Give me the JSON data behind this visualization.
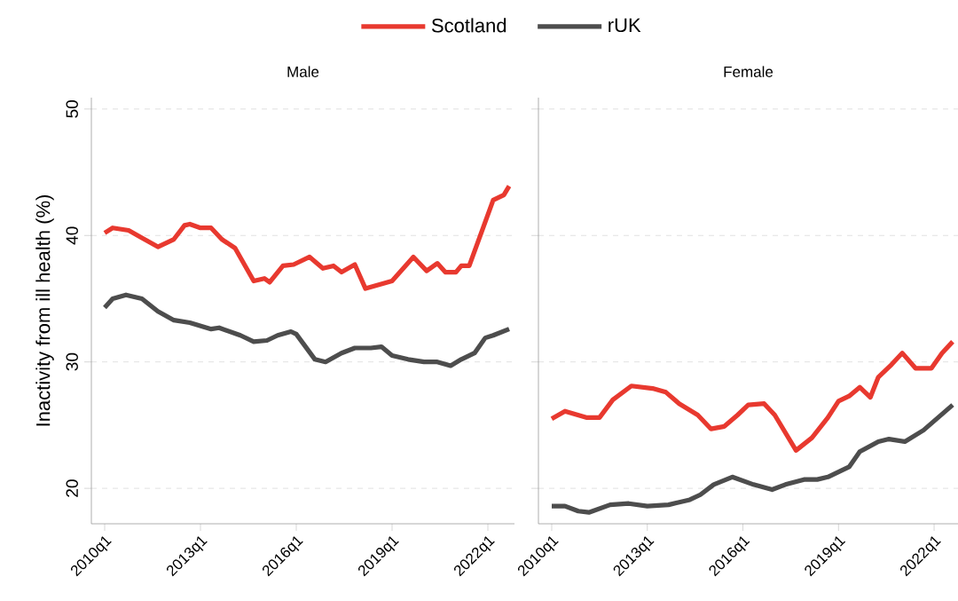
{
  "chart_data": [
    {
      "type": "line",
      "title": "Male",
      "ylabel": "Inactivity from ill health (%)",
      "legend": "top",
      "grid": "y",
      "xlim": [
        "2009-08",
        "2022-11"
      ],
      "ylim": [
        17.2,
        50.9
      ],
      "xticks": [
        {
          "value": "2010-01",
          "label": "2010q1"
        },
        {
          "value": "2013-01",
          "label": "2013q1"
        },
        {
          "value": "2016-01",
          "label": "2016q1"
        },
        {
          "value": "2019-01",
          "label": "2019q1"
        },
        {
          "value": "2022-01",
          "label": "2022q1"
        }
      ],
      "yticks": [
        20,
        30,
        40,
        50
      ],
      "series": [
        {
          "name": "Scotland",
          "color": "#e8392f",
          "x": [
            "2010-01",
            "2010-04",
            "2010-10",
            "2011-03",
            "2011-09",
            "2012-03",
            "2012-07",
            "2012-09",
            "2013-01",
            "2013-05",
            "2013-09",
            "2014-02",
            "2014-09",
            "2015-01",
            "2015-03",
            "2015-08",
            "2015-12",
            "2016-06",
            "2016-11",
            "2017-03",
            "2017-06",
            "2017-11",
            "2018-03",
            "2019-01",
            "2019-09",
            "2020-02",
            "2020-06",
            "2020-09",
            "2021-01",
            "2021-03",
            "2021-06",
            "2022-03",
            "2022-07",
            "2022-09"
          ],
          "values": [
            40.2,
            40.6,
            40.4,
            39.8,
            39.1,
            39.7,
            40.8,
            40.9,
            40.6,
            40.6,
            39.7,
            39.0,
            36.4,
            36.6,
            36.3,
            37.6,
            37.7,
            38.3,
            37.4,
            37.6,
            37.1,
            37.7,
            35.8,
            36.4,
            38.3,
            37.2,
            37.8,
            37.1,
            37.1,
            37.6,
            37.6,
            42.8,
            43.2,
            43.9
          ]
        },
        {
          "name": "rUK",
          "color": "#4d4d4d",
          "x": [
            "2010-01",
            "2010-04",
            "2010-09",
            "2011-03",
            "2011-09",
            "2012-03",
            "2012-09",
            "2013-05",
            "2013-08",
            "2014-04",
            "2014-09",
            "2015-02",
            "2015-06",
            "2015-11",
            "2016-01",
            "2016-08",
            "2016-12",
            "2017-06",
            "2017-11",
            "2018-05",
            "2018-09",
            "2019-01",
            "2019-07",
            "2020-01",
            "2020-06",
            "2020-11",
            "2021-03",
            "2021-08",
            "2021-12",
            "2022-03",
            "2022-09"
          ],
          "values": [
            34.3,
            35.0,
            35.3,
            35.0,
            34.0,
            33.3,
            33.1,
            32.6,
            32.7,
            32.1,
            31.6,
            31.7,
            32.1,
            32.4,
            32.2,
            30.2,
            30.0,
            30.7,
            31.1,
            31.1,
            31.2,
            30.5,
            30.2,
            30.0,
            30.0,
            29.7,
            30.2,
            30.7,
            31.9,
            32.1,
            32.6
          ]
        }
      ]
    },
    {
      "type": "line",
      "title": "Female",
      "grid": "y",
      "tick_labels": "x",
      "xlim": [
        "2009-08",
        "2022-10"
      ],
      "ylim": [
        17.2,
        50.9
      ],
      "xticks": [
        {
          "value": "2010-01",
          "label": "2010q1"
        },
        {
          "value": "2013-01",
          "label": "2013q1"
        },
        {
          "value": "2016-01",
          "label": "2016q1"
        },
        {
          "value": "2019-01",
          "label": "2019q1"
        },
        {
          "value": "2022-01",
          "label": "2022q1"
        }
      ],
      "yticks": [
        20,
        30,
        40,
        50
      ],
      "series": [
        {
          "color": "#e8392f",
          "x": [
            "2010-01",
            "2010-06",
            "2011-02",
            "2011-07",
            "2011-12",
            "2012-07",
            "2013-03",
            "2013-08",
            "2014-01",
            "2014-08",
            "2015-01",
            "2015-06",
            "2015-11",
            "2016-03",
            "2016-09",
            "2017-01",
            "2017-09",
            "2018-03",
            "2018-09",
            "2019-01",
            "2019-05",
            "2019-09",
            "2020-01",
            "2020-04",
            "2020-09",
            "2021-01",
            "2021-06",
            "2021-12",
            "2022-04",
            "2022-08"
          ],
          "values": [
            25.5,
            26.1,
            25.6,
            25.6,
            27.0,
            28.1,
            27.9,
            27.6,
            26.7,
            25.8,
            24.7,
            24.9,
            25.8,
            26.6,
            26.7,
            25.8,
            23.0,
            24.0,
            25.6,
            26.9,
            27.3,
            28.0,
            27.2,
            28.8,
            29.8,
            30.7,
            29.5,
            29.5,
            30.7,
            31.6
          ]
        },
        {
          "color": "#4d4d4d",
          "x": [
            "2010-01",
            "2010-06",
            "2010-11",
            "2011-03",
            "2011-11",
            "2012-06",
            "2013-01",
            "2013-09",
            "2014-05",
            "2014-09",
            "2015-02",
            "2015-09",
            "2016-05",
            "2016-12",
            "2017-05",
            "2017-12",
            "2018-05",
            "2018-09",
            "2019-05",
            "2019-09",
            "2020-04",
            "2020-08",
            "2021-02",
            "2021-09",
            "2022-08"
          ],
          "values": [
            18.6,
            18.6,
            18.2,
            18.1,
            18.7,
            18.8,
            18.6,
            18.7,
            19.1,
            19.5,
            20.3,
            20.9,
            20.3,
            19.9,
            20.3,
            20.7,
            20.7,
            20.9,
            21.7,
            22.9,
            23.7,
            23.9,
            23.7,
            24.6,
            26.6
          ]
        }
      ]
    }
  ]
}
